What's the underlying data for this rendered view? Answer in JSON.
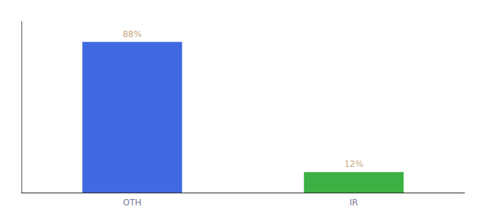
{
  "chart_data": {
    "type": "bar",
    "categories": [
      "OTH",
      "IR"
    ],
    "values": [
      88,
      12
    ],
    "value_labels": [
      "88%",
      "12%"
    ],
    "colors": [
      "#4169E1",
      "#3CB043"
    ],
    "ylim": [
      0,
      100
    ],
    "grid": false,
    "data_labels": true,
    "tick_labels": "x"
  }
}
